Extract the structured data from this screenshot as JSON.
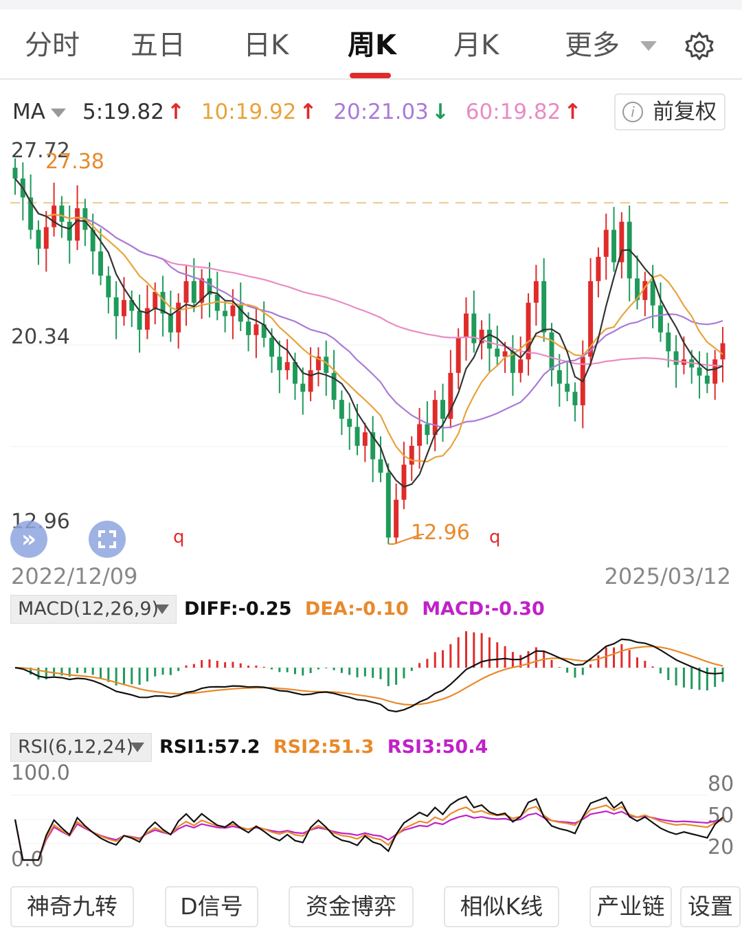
{
  "tabs": [
    {
      "label": "分时"
    },
    {
      "label": "五日"
    },
    {
      "label": "日K"
    },
    {
      "label": "周K",
      "active": true
    },
    {
      "label": "月K"
    },
    {
      "label": "更多"
    }
  ],
  "ma_bar": {
    "selector": "MA",
    "items": [
      {
        "label": "5:19.82",
        "dir": "↑",
        "color": "#333333",
        "arrow_color": "#e02b2b"
      },
      {
        "label": "10:19.92",
        "dir": "↑",
        "color": "#e8a33a",
        "arrow_color": "#e02b2b"
      },
      {
        "label": "20:21.03",
        "dir": "↓",
        "color": "#a97ad8",
        "arrow_color": "#1f9a5a"
      },
      {
        "label": "60:19.82",
        "dir": "↑",
        "color": "#e98bc3",
        "arrow_color": "#e02b2b"
      }
    ],
    "adjust_button": "前复权"
  },
  "price_axis": {
    "top": "27.72",
    "mid": "20.34",
    "bottom": "12.96"
  },
  "annotations": {
    "high": "27.38",
    "low": "12.96",
    "marker": "q"
  },
  "dates": {
    "start": "2022/12/09",
    "end": "2025/03/12"
  },
  "macd": {
    "selector": "MACD(12,26,9)",
    "diff": "DIFF:-0.25",
    "dea": "DEA:-0.10",
    "macd": "MACD:-0.30"
  },
  "rsi": {
    "selector": "RSI(6,12,24)",
    "rsi1": "RSI1:57.2",
    "rsi2": "RSI2:51.3",
    "rsi3": "RSI3:50.4",
    "y_top": "100.0",
    "y_bottom": "0.0",
    "right_ticks": [
      "80",
      "50",
      "20"
    ]
  },
  "bottom_buttons": [
    "神奇九转",
    "D信号",
    "资金博弈",
    "相似K线",
    "产业链",
    "设置"
  ],
  "colors": {
    "up": "#e02b2b",
    "down": "#1f9a5a",
    "ma5": "#333333",
    "ma10": "#e8a33a",
    "ma20": "#a97ad8",
    "ma60": "#e98bc3",
    "diff": "#111111",
    "dea": "#e8892a",
    "macd_label": "#c021c8",
    "rsi3": "#c021c8"
  },
  "chart_data": [
    {
      "type": "candlestick",
      "title": "周K",
      "x_range": [
        "2022/12/09",
        "2025/03/12"
      ],
      "ylim": [
        12.96,
        27.72
      ],
      "y_ticks": [
        27.72,
        20.34,
        12.96
      ],
      "reference_line": 25.6,
      "series": [
        {
          "name": "MA5",
          "value_last": 19.82
        },
        {
          "name": "MA10",
          "value_last": 19.92
        },
        {
          "name": "MA20",
          "value_last": 21.03
        },
        {
          "name": "MA60",
          "value_last": 19.82
        }
      ],
      "close_estimate": [
        26.5,
        25.8,
        24.6,
        23.9,
        24.7,
        25.5,
        24.9,
        24.2,
        25.4,
        24.6,
        23.8,
        22.9,
        22.1,
        21.4,
        22.0,
        21.6,
        20.9,
        21.7,
        22.3,
        21.5,
        20.8,
        21.9,
        22.7,
        21.9,
        22.8,
        22.2,
        21.6,
        21.4,
        21.8,
        21.2,
        20.7,
        21.1,
        20.6,
        19.9,
        19.4,
        19.7,
        18.9,
        18.6,
        19.4,
        19.9,
        19.3,
        18.3,
        17.6,
        17.3,
        16.6,
        17.1,
        16.1,
        15.6,
        13.2,
        14.6,
        15.9,
        16.6,
        17.4,
        17.0,
        18.3,
        17.6,
        19.3,
        20.6,
        21.5,
        20.4,
        20.9,
        20.2,
        19.9,
        20.1,
        19.3,
        19.8,
        21.9,
        22.7,
        20.8,
        19.4,
        18.9,
        18.6,
        18.1,
        19.9,
        22.7,
        23.6,
        24.6,
        23.4,
        24.9,
        22.8,
        22.0,
        22.7,
        21.8,
        20.8,
        20.1,
        19.6,
        19.8,
        19.5,
        19.2,
        18.9,
        19.8,
        20.4
      ],
      "annotations": {
        "high": 27.38,
        "low": 12.96
      }
    },
    {
      "type": "bar",
      "title": "MACD(12,26,9)",
      "series": [
        {
          "name": "DIFF",
          "value_last": -0.25
        },
        {
          "name": "DEA",
          "value_last": -0.1
        },
        {
          "name": "MACD",
          "value_last": -0.3
        }
      ]
    },
    {
      "type": "line",
      "title": "RSI(6,12,24)",
      "ylim": [
        0,
        100
      ],
      "y_ticks": [
        80,
        50,
        20
      ],
      "series": [
        {
          "name": "RSI1",
          "value_last": 57.2
        },
        {
          "name": "RSI2",
          "value_last": 51.3
        },
        {
          "name": "RSI3",
          "value_last": 50.4
        }
      ]
    }
  ]
}
